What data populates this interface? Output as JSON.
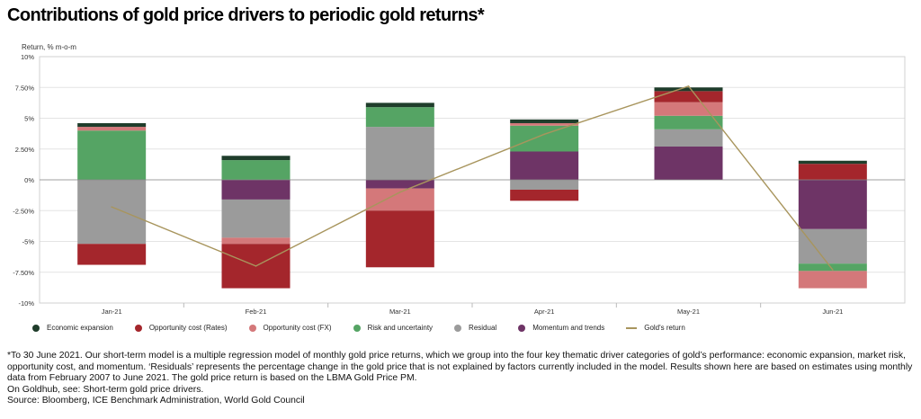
{
  "title": "Contributions of gold price drivers to periodic gold returns*",
  "chart_data": {
    "type": "bar",
    "stacked": true,
    "ylabel": "Return, % m-o-m",
    "ylim": [
      -10,
      10
    ],
    "yticks": [
      10,
      7.5,
      5,
      2.5,
      0,
      -2.5,
      -5,
      -7.5,
      -10
    ],
    "ytick_labels": [
      "10%",
      "7.50%",
      "5%",
      "2.50%",
      "0%",
      "-2.50%",
      "-5%",
      "-7.50%",
      "-10%"
    ],
    "categories": [
      "Jan-21",
      "Feb-21",
      "Mar-21",
      "Apr-21",
      "May-21",
      "Jun-21"
    ],
    "grid": true,
    "legend_position": "bottom",
    "series": [
      {
        "name": "Economic expansion",
        "color": "#1f3d2b",
        "values": [
          0.3,
          0.35,
          0.35,
          0.3,
          0.3,
          0.25
        ]
      },
      {
        "name": "Opportunity cost (Rates)",
        "color": "#a4262c",
        "values": [
          -1.7,
          -3.6,
          -4.6,
          -0.9,
          0.9,
          1.3
        ]
      },
      {
        "name": "Opportunity cost (FX)",
        "color": "#d4787a",
        "values": [
          0.3,
          -0.5,
          -1.8,
          0.2,
          1.1,
          -1.4
        ]
      },
      {
        "name": "Risk and uncertainty",
        "color": "#55a464",
        "values": [
          4.0,
          1.6,
          1.6,
          2.1,
          1.1,
          -0.6
        ]
      },
      {
        "name": "Residual",
        "color": "#9b9b9b",
        "values": [
          -5.2,
          -3.1,
          4.3,
          -0.8,
          1.4,
          -2.8
        ]
      },
      {
        "name": "Momentum and trends",
        "color": "#6e3466",
        "values": [
          0.0,
          -1.6,
          -0.7,
          2.3,
          2.7,
          -4.0
        ]
      }
    ],
    "line_series": {
      "name": "Gold's return",
      "color": "#a8955d",
      "values": [
        -2.2,
        -7.0,
        -1.0,
        3.7,
        7.6,
        -7.3
      ]
    }
  },
  "footnote": [
    "*To 30 June 2021. Our short-term model is a multiple regression model of monthly gold price returns, which we group into the four key thematic driver categories of gold’s performance: economic expansion, market risk, opportunity cost, and momentum. ‘Residuals’ represents the percentage change in the gold price that is not explained by factors currently included in the model. Results shown here are based on estimates using monthly data from February 2007 to June 2021. The gold price return is based on the LBMA Gold Price PM.",
    "On Goldhub, see: Short-term gold price drivers.",
    "Source: Bloomberg, ICE Benchmark Administration, World Gold Council"
  ]
}
